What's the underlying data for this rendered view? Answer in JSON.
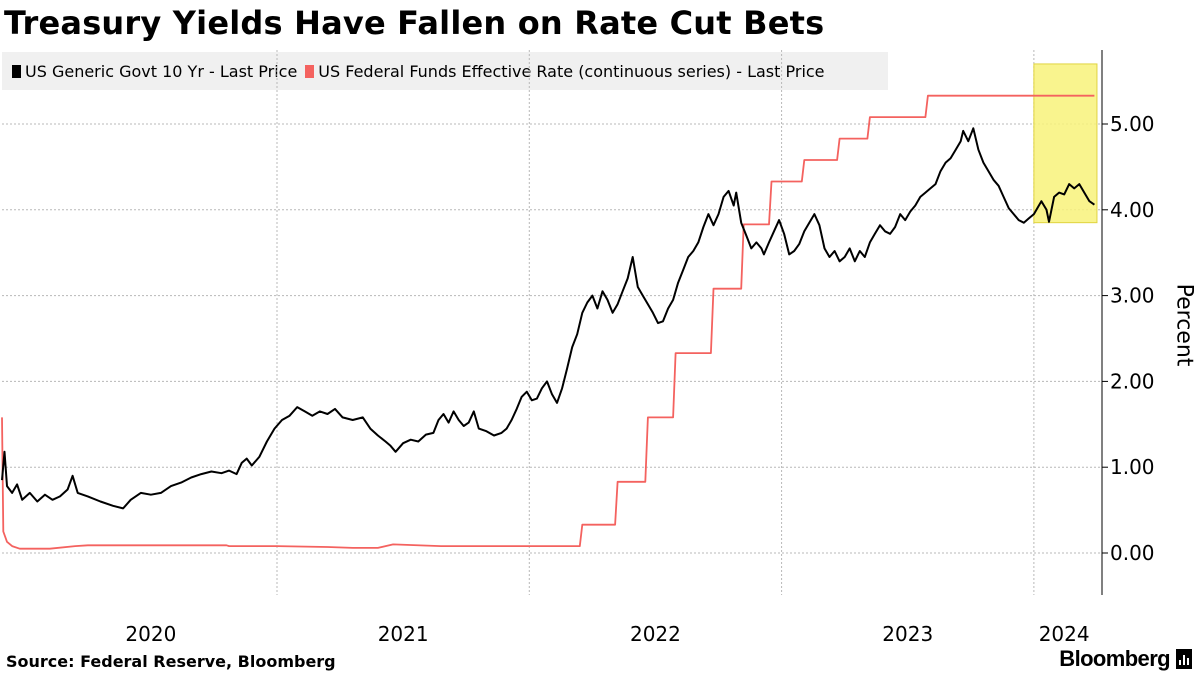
{
  "chart_data": {
    "type": "line",
    "title": "Treasury Yields Have Fallen on Rate Cut Bets",
    "ylabel": "Percent",
    "ylim": [
      -0.5,
      5.8
    ],
    "yticks": [
      0,
      1,
      2,
      3,
      4,
      5
    ],
    "ytick_labels": [
      "0.00",
      "1.00",
      "2.00",
      "3.00",
      "4.00",
      "5.00"
    ],
    "xlim": [
      2019.91,
      2024.27
    ],
    "year_boundaries": [
      2021.0,
      2022.0,
      2023.0,
      2024.0
    ],
    "xtick_labels": [
      {
        "label": "2020",
        "x": 2020.5
      },
      {
        "label": "2021",
        "x": 2021.5
      },
      {
        "label": "2022",
        "x": 2022.5
      },
      {
        "label": "2023",
        "x": 2023.5
      },
      {
        "label": "2024",
        "x": 2024.12
      }
    ],
    "highlight": {
      "x0": 2024.0,
      "x1": 2024.25,
      "y0": 3.85,
      "y1": 5.7,
      "color": "#f8f27a"
    },
    "series": [
      {
        "name": "US Generic Govt 10 Yr - Last Price",
        "color": "#000000",
        "points": [
          [
            2019.91,
            0.85
          ],
          [
            2019.92,
            1.18
          ],
          [
            2019.93,
            0.78
          ],
          [
            2019.95,
            0.7
          ],
          [
            2019.97,
            0.8
          ],
          [
            2019.99,
            0.62
          ],
          [
            2020.02,
            0.7
          ],
          [
            2020.05,
            0.6
          ],
          [
            2020.08,
            0.68
          ],
          [
            2020.11,
            0.62
          ],
          [
            2020.14,
            0.66
          ],
          [
            2020.17,
            0.74
          ],
          [
            2020.19,
            0.9
          ],
          [
            2020.21,
            0.7
          ],
          [
            2020.25,
            0.66
          ],
          [
            2020.3,
            0.6
          ],
          [
            2020.35,
            0.55
          ],
          [
            2020.39,
            0.52
          ],
          [
            2020.42,
            0.62
          ],
          [
            2020.46,
            0.7
          ],
          [
            2020.5,
            0.68
          ],
          [
            2020.54,
            0.7
          ],
          [
            2020.58,
            0.78
          ],
          [
            2020.62,
            0.82
          ],
          [
            2020.66,
            0.88
          ],
          [
            2020.7,
            0.92
          ],
          [
            2020.74,
            0.95
          ],
          [
            2020.78,
            0.93
          ],
          [
            2020.81,
            0.96
          ],
          [
            2020.84,
            0.92
          ],
          [
            2020.86,
            1.05
          ],
          [
            2020.88,
            1.1
          ],
          [
            2020.9,
            1.02
          ],
          [
            2020.93,
            1.12
          ],
          [
            2020.96,
            1.3
          ],
          [
            2020.99,
            1.45
          ],
          [
            2021.02,
            1.55
          ],
          [
            2021.05,
            1.6
          ],
          [
            2021.08,
            1.7
          ],
          [
            2021.11,
            1.65
          ],
          [
            2021.14,
            1.6
          ],
          [
            2021.17,
            1.65
          ],
          [
            2021.2,
            1.62
          ],
          [
            2021.23,
            1.68
          ],
          [
            2021.26,
            1.58
          ],
          [
            2021.3,
            1.55
          ],
          [
            2021.34,
            1.58
          ],
          [
            2021.37,
            1.45
          ],
          [
            2021.4,
            1.37
          ],
          [
            2021.43,
            1.3
          ],
          [
            2021.45,
            1.25
          ],
          [
            2021.47,
            1.18
          ],
          [
            2021.5,
            1.28
          ],
          [
            2021.53,
            1.32
          ],
          [
            2021.56,
            1.3
          ],
          [
            2021.59,
            1.38
          ],
          [
            2021.62,
            1.4
          ],
          [
            2021.64,
            1.55
          ],
          [
            2021.66,
            1.62
          ],
          [
            2021.68,
            1.52
          ],
          [
            2021.7,
            1.65
          ],
          [
            2021.72,
            1.55
          ],
          [
            2021.74,
            1.48
          ],
          [
            2021.76,
            1.52
          ],
          [
            2021.78,
            1.65
          ],
          [
            2021.8,
            1.45
          ],
          [
            2021.83,
            1.42
          ],
          [
            2021.86,
            1.37
          ],
          [
            2021.89,
            1.4
          ],
          [
            2021.91,
            1.45
          ],
          [
            2021.93,
            1.55
          ],
          [
            2021.95,
            1.68
          ],
          [
            2021.97,
            1.82
          ],
          [
            2021.99,
            1.88
          ],
          [
            2022.01,
            1.78
          ],
          [
            2022.03,
            1.8
          ],
          [
            2022.05,
            1.92
          ],
          [
            2022.07,
            2.0
          ],
          [
            2022.09,
            1.85
          ],
          [
            2022.11,
            1.75
          ],
          [
            2022.13,
            1.92
          ],
          [
            2022.15,
            2.15
          ],
          [
            2022.17,
            2.4
          ],
          [
            2022.19,
            2.55
          ],
          [
            2022.21,
            2.8
          ],
          [
            2022.23,
            2.92
          ],
          [
            2022.25,
            3.0
          ],
          [
            2022.27,
            2.85
          ],
          [
            2022.29,
            3.05
          ],
          [
            2022.31,
            2.95
          ],
          [
            2022.33,
            2.8
          ],
          [
            2022.35,
            2.9
          ],
          [
            2022.37,
            3.05
          ],
          [
            2022.39,
            3.2
          ],
          [
            2022.41,
            3.45
          ],
          [
            2022.43,
            3.1
          ],
          [
            2022.45,
            3.0
          ],
          [
            2022.47,
            2.9
          ],
          [
            2022.49,
            2.8
          ],
          [
            2022.51,
            2.68
          ],
          [
            2022.53,
            2.7
          ],
          [
            2022.55,
            2.85
          ],
          [
            2022.57,
            2.95
          ],
          [
            2022.59,
            3.15
          ],
          [
            2022.61,
            3.3
          ],
          [
            2022.63,
            3.45
          ],
          [
            2022.65,
            3.52
          ],
          [
            2022.67,
            3.62
          ],
          [
            2022.69,
            3.8
          ],
          [
            2022.71,
            3.95
          ],
          [
            2022.73,
            3.82
          ],
          [
            2022.75,
            3.95
          ],
          [
            2022.77,
            4.15
          ],
          [
            2022.79,
            4.22
          ],
          [
            2022.81,
            4.05
          ],
          [
            2022.82,
            4.2
          ],
          [
            2022.84,
            3.85
          ],
          [
            2022.86,
            3.7
          ],
          [
            2022.88,
            3.55
          ],
          [
            2022.9,
            3.62
          ],
          [
            2022.92,
            3.55
          ],
          [
            2022.93,
            3.48
          ],
          [
            2022.95,
            3.62
          ],
          [
            2022.97,
            3.75
          ],
          [
            2022.99,
            3.88
          ],
          [
            2023.01,
            3.72
          ],
          [
            2023.03,
            3.48
          ],
          [
            2023.05,
            3.52
          ],
          [
            2023.07,
            3.6
          ],
          [
            2023.09,
            3.75
          ],
          [
            2023.11,
            3.85
          ],
          [
            2023.13,
            3.95
          ],
          [
            2023.15,
            3.82
          ],
          [
            2023.17,
            3.55
          ],
          [
            2023.19,
            3.45
          ],
          [
            2023.21,
            3.52
          ],
          [
            2023.23,
            3.4
          ],
          [
            2023.25,
            3.45
          ],
          [
            2023.27,
            3.55
          ],
          [
            2023.29,
            3.4
          ],
          [
            2023.31,
            3.52
          ],
          [
            2023.33,
            3.45
          ],
          [
            2023.35,
            3.62
          ],
          [
            2023.37,
            3.72
          ],
          [
            2023.39,
            3.82
          ],
          [
            2023.41,
            3.75
          ],
          [
            2023.43,
            3.72
          ],
          [
            2023.45,
            3.8
          ],
          [
            2023.47,
            3.95
          ],
          [
            2023.49,
            3.88
          ],
          [
            2023.51,
            3.98
          ],
          [
            2023.53,
            4.05
          ],
          [
            2023.55,
            4.15
          ],
          [
            2023.57,
            4.2
          ],
          [
            2023.59,
            4.25
          ],
          [
            2023.61,
            4.3
          ],
          [
            2023.63,
            4.45
          ],
          [
            2023.65,
            4.55
          ],
          [
            2023.67,
            4.6
          ],
          [
            2023.69,
            4.7
          ],
          [
            2023.71,
            4.8
          ],
          [
            2023.72,
            4.92
          ],
          [
            2023.74,
            4.8
          ],
          [
            2023.76,
            4.95
          ],
          [
            2023.78,
            4.7
          ],
          [
            2023.8,
            4.55
          ],
          [
            2023.82,
            4.45
          ],
          [
            2023.84,
            4.35
          ],
          [
            2023.86,
            4.28
          ],
          [
            2023.88,
            4.15
          ],
          [
            2023.9,
            4.02
          ],
          [
            2023.92,
            3.95
          ],
          [
            2023.94,
            3.88
          ],
          [
            2023.96,
            3.85
          ],
          [
            2023.98,
            3.9
          ],
          [
            2024.0,
            3.95
          ],
          [
            2024.02,
            4.05
          ],
          [
            2024.03,
            4.1
          ],
          [
            2024.05,
            4.0
          ],
          [
            2024.06,
            3.86
          ],
          [
            2024.08,
            4.15
          ],
          [
            2024.1,
            4.2
          ],
          [
            2024.12,
            4.18
          ],
          [
            2024.14,
            4.3
          ],
          [
            2024.16,
            4.25
          ],
          [
            2024.18,
            4.3
          ],
          [
            2024.2,
            4.2
          ],
          [
            2024.22,
            4.1
          ],
          [
            2024.24,
            4.06
          ]
        ]
      },
      {
        "name": "US Federal Funds Effective Rate (continuous series) - Last Price",
        "color": "#f4625f",
        "points": [
          [
            2019.91,
            1.58
          ],
          [
            2019.915,
            0.25
          ],
          [
            2019.93,
            0.13
          ],
          [
            2019.95,
            0.08
          ],
          [
            2019.98,
            0.05
          ],
          [
            2020.0,
            0.05
          ],
          [
            2020.1,
            0.05
          ],
          [
            2020.2,
            0.08
          ],
          [
            2020.25,
            0.09
          ],
          [
            2020.4,
            0.09
          ],
          [
            2020.6,
            0.09
          ],
          [
            2020.8,
            0.09
          ],
          [
            2020.81,
            0.08
          ],
          [
            2021.0,
            0.08
          ],
          [
            2021.2,
            0.07
          ],
          [
            2021.3,
            0.06
          ],
          [
            2021.4,
            0.06
          ],
          [
            2021.46,
            0.1
          ],
          [
            2021.65,
            0.08
          ],
          [
            2021.8,
            0.08
          ],
          [
            2022.0,
            0.08
          ],
          [
            2022.2,
            0.08
          ],
          [
            2022.21,
            0.33
          ],
          [
            2022.34,
            0.33
          ],
          [
            2022.35,
            0.83
          ],
          [
            2022.46,
            0.83
          ],
          [
            2022.47,
            1.58
          ],
          [
            2022.57,
            1.58
          ],
          [
            2022.58,
            2.33
          ],
          [
            2022.72,
            2.33
          ],
          [
            2022.73,
            3.08
          ],
          [
            2022.84,
            3.08
          ],
          [
            2022.85,
            3.83
          ],
          [
            2022.95,
            3.83
          ],
          [
            2022.96,
            4.33
          ],
          [
            2023.08,
            4.33
          ],
          [
            2023.09,
            4.58
          ],
          [
            2023.22,
            4.58
          ],
          [
            2023.23,
            4.83
          ],
          [
            2023.34,
            4.83
          ],
          [
            2023.35,
            5.08
          ],
          [
            2023.57,
            5.08
          ],
          [
            2023.58,
            5.33
          ],
          [
            2023.8,
            5.33
          ],
          [
            2024.0,
            5.33
          ],
          [
            2024.24,
            5.33
          ]
        ]
      }
    ]
  },
  "source_text": "Source: Federal Reserve, Bloomberg",
  "brand": "Bloomberg"
}
